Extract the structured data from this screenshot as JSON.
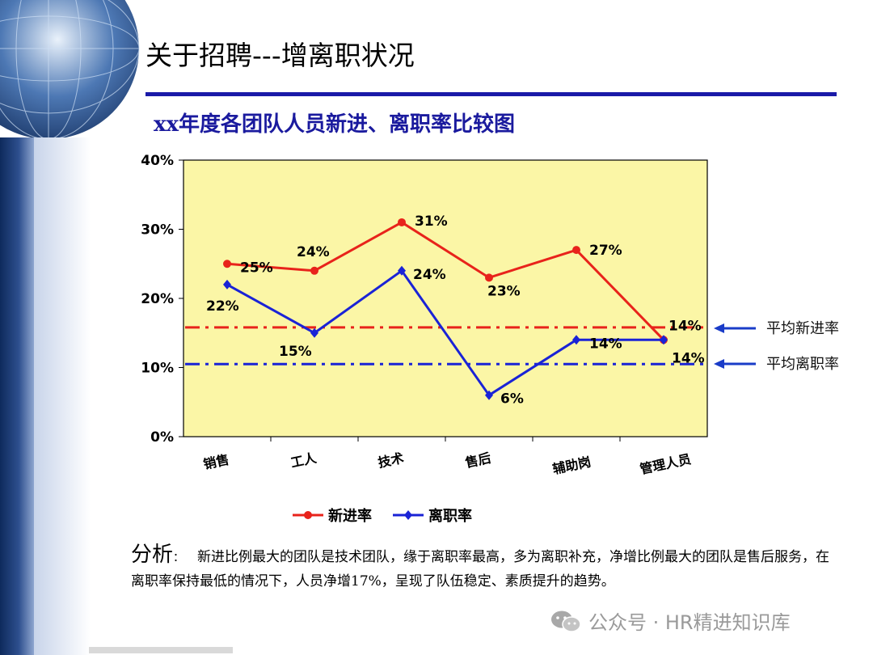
{
  "page": {
    "title": "关于招聘---增离职状况",
    "analysis_label": "分析",
    "analysis_colon": "：",
    "analysis_text": "新进比例最大的团队是技术团队，缘于离职率最高，多为离职补充，净增比例最大的团队是售后服务，在离职率保持最低的情况下，人员净增17%，呈现了队伍稳定、素质提升的趋势。",
    "watermark": "公众号 · HR精进知识库"
  },
  "colors": {
    "plot_bg": "#fbf6a6",
    "hire_series": "#e8231b",
    "leave_series": "#1a23d6",
    "title_rule": "#1a1aa8"
  },
  "chart_data": {
    "type": "line",
    "title": "xx年度各团队人员新进、离职率比较图",
    "categories": [
      "销售",
      "工人",
      "技术",
      "售后",
      "辅助岗",
      "管理人员"
    ],
    "ylim": [
      0,
      40
    ],
    "yticks": [
      0,
      10,
      20,
      30,
      40
    ],
    "ytick_labels": [
      "0%",
      "10%",
      "20%",
      "30%",
      "40%"
    ],
    "series": [
      {
        "name": "新进率",
        "values": [
          25,
          24,
          31,
          23,
          27,
          14
        ],
        "labels": [
          "25%",
          "24%",
          "31%",
          "23%",
          "27%",
          "14%"
        ],
        "color": "#e8231b",
        "marker": "circle"
      },
      {
        "name": "离职率",
        "values": [
          22,
          15,
          24,
          6,
          14,
          14
        ],
        "labels": [
          "22%",
          "15%",
          "24%",
          "6%",
          "14%",
          "14%"
        ],
        "color": "#1a23d6",
        "marker": "diamond"
      }
    ],
    "reference_lines": [
      {
        "label": "平均新进率",
        "value": 15.8,
        "color": "#e8231b"
      },
      {
        "label": "平均离职率",
        "value": 10.5,
        "color": "#1a23d6"
      }
    ],
    "legend_position": "bottom",
    "grid": false
  }
}
